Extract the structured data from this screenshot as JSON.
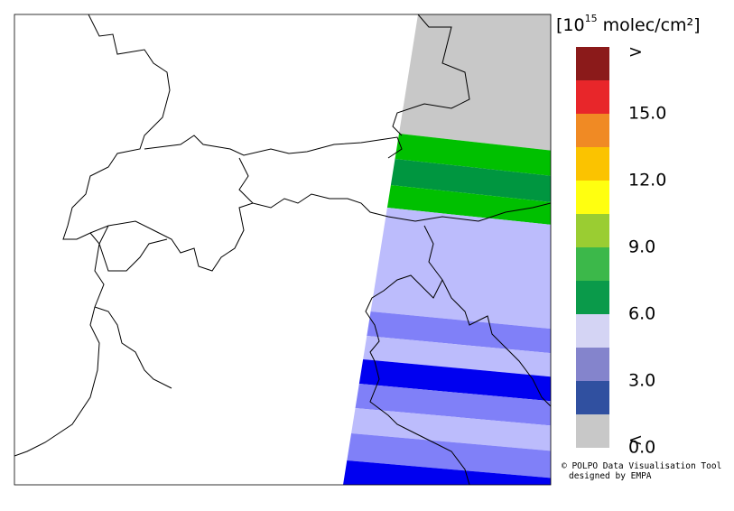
{
  "legend": {
    "unit": {
      "base": "[10",
      "exponent": "15",
      "rest": " molec/cm²]"
    },
    "colors": [
      "#8b1a1a",
      "#e8262a",
      "#f08a24",
      "#fbc300",
      "#ffff10",
      "#9acd32",
      "#3cb84a",
      "#0a9a4a",
      "#d4d4f4",
      "#8484cc",
      "#3050a0",
      "#c8c8c8"
    ],
    "labels": [
      ">",
      "15.0",
      "12.0",
      "9.0",
      "6.0",
      "3.0",
      "0.0",
      "<"
    ]
  },
  "credits": [
    "© POLPO Data Visualisation Tool",
    "designed by EMPA"
  ]
}
